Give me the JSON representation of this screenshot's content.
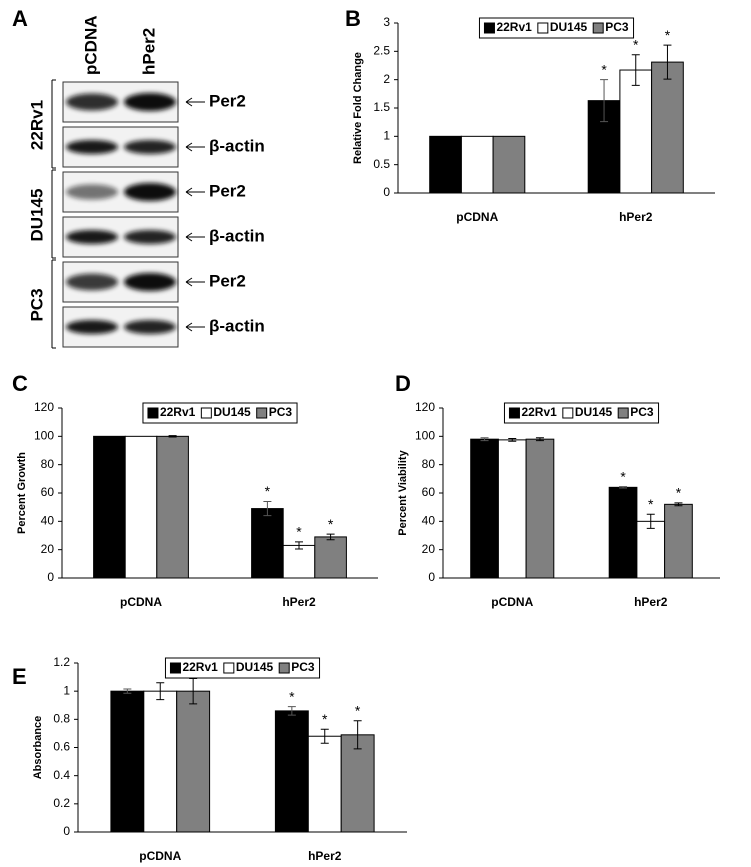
{
  "blot": {
    "panel_label": "A",
    "columns": [
      "pCDNA",
      "hPer2"
    ],
    "cell_lines": [
      {
        "name": "22Rv1",
        "rows": [
          "Per2",
          "β-actin"
        ]
      },
      {
        "name": "DU145",
        "rows": [
          "Per2",
          "β-actin"
        ]
      },
      {
        "name": "PC3",
        "rows": [
          "Per2",
          "β-actin"
        ]
      }
    ]
  },
  "chart_data": [
    {
      "type": "bar",
      "panel_label": "B",
      "ylabel": "Relative Fold Change",
      "categories": [
        "pCDNA",
        "hPer2"
      ],
      "ylim": [
        0,
        3
      ],
      "yticks": [
        0,
        0.5,
        1,
        1.5,
        2,
        2.5,
        3
      ],
      "legend": "top",
      "series": [
        {
          "name": "22Rv1",
          "color": "#000000",
          "values": [
            1,
            1.63
          ],
          "errors": [
            null,
            0.37
          ],
          "annotations": [
            null,
            "*"
          ]
        },
        {
          "name": "DU145",
          "color": "#ffffff",
          "values": [
            1,
            2.17
          ],
          "errors": [
            null,
            0.27
          ],
          "annotations": [
            null,
            "*"
          ]
        },
        {
          "name": "PC3",
          "color": "#808080",
          "values": [
            1,
            2.31
          ],
          "errors": [
            null,
            0.3
          ],
          "annotations": [
            null,
            "*"
          ]
        }
      ]
    },
    {
      "type": "bar",
      "panel_label": "C",
      "ylabel": "Percent Growth",
      "categories": [
        "pCDNA",
        "hPer2"
      ],
      "ylim": [
        0,
        120
      ],
      "yticks": [
        0,
        20,
        40,
        60,
        80,
        100,
        120
      ],
      "legend": "top",
      "series": [
        {
          "name": "22Rv1",
          "color": "#000000",
          "values": [
            100,
            49
          ],
          "errors": [
            null,
            5
          ],
          "annotations": [
            null,
            "*"
          ]
        },
        {
          "name": "DU145",
          "color": "#ffffff",
          "values": [
            100,
            23
          ],
          "errors": [
            null,
            2.5
          ],
          "annotations": [
            null,
            "*"
          ]
        },
        {
          "name": "PC3",
          "color": "#808080",
          "values": [
            100,
            29
          ],
          "errors": [
            0.5,
            2
          ],
          "annotations": [
            null,
            "*"
          ]
        }
      ]
    },
    {
      "type": "bar",
      "panel_label": "D",
      "ylabel": "Percent Viability",
      "categories": [
        "pCDNA",
        "hPer2"
      ],
      "ylim": [
        0,
        120
      ],
      "yticks": [
        0,
        20,
        40,
        60,
        80,
        100,
        120
      ],
      "legend": "top",
      "series": [
        {
          "name": "22Rv1",
          "color": "#000000",
          "values": [
            98,
            64
          ],
          "errors": [
            1,
            0.5
          ],
          "annotations": [
            null,
            "*"
          ]
        },
        {
          "name": "DU145",
          "color": "#ffffff",
          "values": [
            97.5,
            40
          ],
          "errors": [
            1,
            5
          ],
          "annotations": [
            null,
            "*"
          ]
        },
        {
          "name": "PC3",
          "color": "#808080",
          "values": [
            98,
            52
          ],
          "errors": [
            1,
            1
          ],
          "annotations": [
            null,
            "*"
          ]
        }
      ]
    },
    {
      "type": "bar",
      "panel_label": "E",
      "ylabel": "Absorbance",
      "categories": [
        "pCDNA",
        "hPer2"
      ],
      "ylim": [
        0,
        1.2
      ],
      "yticks": [
        0,
        0.2,
        0.4,
        0.6,
        0.8,
        1,
        1.2
      ],
      "legend": "top",
      "series": [
        {
          "name": "22Rv1",
          "color": "#000000",
          "values": [
            1,
            0.86
          ],
          "errors": [
            0.015,
            0.03
          ],
          "annotations": [
            null,
            "*"
          ]
        },
        {
          "name": "DU145",
          "color": "#ffffff",
          "values": [
            1,
            0.68
          ],
          "errors": [
            0.06,
            0.05
          ],
          "annotations": [
            null,
            "*"
          ]
        },
        {
          "name": "PC3",
          "color": "#808080",
          "values": [
            1,
            0.69
          ],
          "errors": [
            0.09,
            0.1
          ],
          "annotations": [
            null,
            "*"
          ]
        }
      ]
    }
  ]
}
